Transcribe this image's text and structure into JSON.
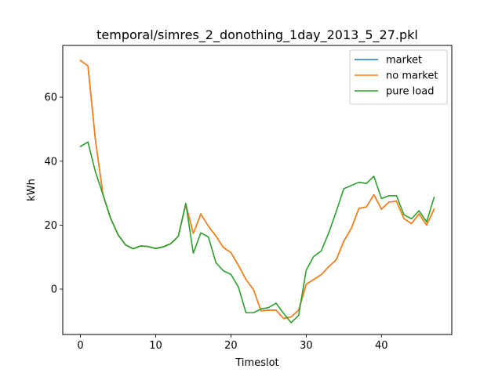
{
  "chart_data": {
    "type": "line",
    "title": "temporal/simres_2_donothing_1day_2013_5_27.pkl",
    "xlabel": "Timeslot",
    "ylabel": "kWh",
    "xlim": [
      -2.35,
      49.35
    ],
    "ylim": [
      -14.2,
      76.2
    ],
    "xticks": [
      0,
      10,
      20,
      30,
      40
    ],
    "yticks": [
      0,
      20,
      40,
      60
    ],
    "grid": false,
    "legend_position": "upper right",
    "x": [
      0,
      1,
      2,
      3,
      4,
      5,
      6,
      7,
      8,
      9,
      10,
      11,
      12,
      13,
      14,
      15,
      16,
      17,
      18,
      19,
      20,
      21,
      22,
      23,
      24,
      25,
      26,
      27,
      28,
      29,
      30,
      31,
      32,
      33,
      34,
      35,
      36,
      37,
      38,
      39,
      40,
      41,
      42,
      43,
      44,
      45,
      46,
      47
    ],
    "series": [
      {
        "name": "market",
        "color": "#1f77b4",
        "values": [
          71.5,
          69.8,
          46.5,
          29.5,
          22.2,
          17.0,
          13.8,
          12.6,
          13.5,
          13.3,
          12.7,
          13.2,
          14.2,
          16.5,
          26.5,
          17.4,
          23.5,
          19.7,
          16.6,
          13.0,
          11.4,
          7.4,
          3.0,
          -0.2,
          -6.8,
          -6.6,
          -6.6,
          -9.2,
          -8.7,
          -6.6,
          1.5,
          3.0,
          4.5,
          7.0,
          9.2,
          15.0,
          19.0,
          25.2,
          25.7,
          29.5,
          25.0,
          27.2,
          27.5,
          22.0,
          20.5,
          23.5,
          20.0,
          25.0
        ]
      },
      {
        "name": "no market",
        "color": "#ff7f0e",
        "values": [
          71.5,
          69.8,
          46.5,
          29.5,
          22.2,
          17.0,
          13.8,
          12.6,
          13.5,
          13.3,
          12.7,
          13.2,
          14.2,
          16.5,
          26.5,
          17.4,
          23.5,
          19.7,
          16.6,
          13.0,
          11.4,
          7.4,
          3.0,
          -0.2,
          -6.8,
          -6.6,
          -6.6,
          -9.2,
          -8.7,
          -6.6,
          1.5,
          3.0,
          4.5,
          7.0,
          9.2,
          15.0,
          19.0,
          25.2,
          25.7,
          29.5,
          25.0,
          27.2,
          27.5,
          22.0,
          20.5,
          23.5,
          20.0,
          25.0
        ]
      },
      {
        "name": "pure load",
        "color": "#2ca02c",
        "values": [
          44.6,
          46.0,
          36.6,
          29.5,
          22.2,
          17.0,
          13.8,
          12.6,
          13.5,
          13.3,
          12.7,
          13.2,
          14.2,
          16.5,
          26.8,
          11.2,
          17.6,
          16.3,
          8.3,
          5.7,
          4.6,
          0.6,
          -7.4,
          -7.4,
          -6.2,
          -5.8,
          -4.4,
          -7.6,
          -10.5,
          -8.2,
          5.9,
          10.2,
          11.9,
          17.6,
          24.3,
          31.4,
          32.4,
          33.4,
          33.0,
          35.3,
          28.3,
          29.2,
          29.2,
          23.2,
          22.0,
          24.5,
          21.0,
          28.7
        ]
      }
    ]
  }
}
